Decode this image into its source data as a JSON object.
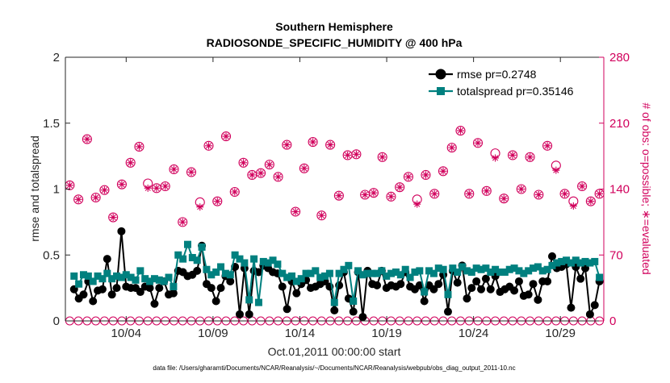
{
  "chart_data": {
    "type": "line",
    "title": "Southern Hemisphere",
    "subtitle": "RADIOSONDE_SPECIFIC_HUMIDITY @ 400 hPa",
    "xlabel": "Oct.01,2011 00:00:00 start",
    "ylabel": "rmse and totalspread",
    "ylabel_right": "# of obs: o=possible; ∗=evaluated",
    "footnote": "data file: /Users/gharamti/Documents/NCAR/Reanalysis/~/Documents/NCAR/Reanalysis/webpub/obs_diag_output_2011-10.nc",
    "xlim": [
      0.5,
      62.5
    ],
    "ylim": [
      0,
      2
    ],
    "ylim_right": [
      0,
      280
    ],
    "x_ticks": [
      7.5,
      17.5,
      27.5,
      37.5,
      47.5,
      57.5
    ],
    "x_tick_labels": [
      "10/04",
      "10/09",
      "10/14",
      "10/19",
      "10/24",
      "10/29"
    ],
    "y_ticks": [
      0,
      0.5,
      1,
      1.5,
      2
    ],
    "y_tick_labels": [
      "0",
      "0.5",
      "1",
      "1.5",
      "2"
    ],
    "y_ticks_right": [
      0,
      70,
      140,
      210,
      280
    ],
    "y_tick_labels_right": [
      "0",
      "70",
      "140",
      "210",
      "280"
    ],
    "legend": {
      "location": "top-right",
      "rmse_label": "rmse pr=0.2748",
      "spread_label": "totalspread pr=0.35146"
    },
    "colors": {
      "rmse": "#000000",
      "spread": "#00807f",
      "obs": "#d1005c",
      "axis": "#262626"
    },
    "series": [
      {
        "name": "rmse",
        "values": [
          0.24,
          0.17,
          0.2,
          0.3,
          0.15,
          0.23,
          0.24,
          0.47,
          0.2,
          0.25,
          0.68,
          0.26,
          0.25,
          0.25,
          0.22,
          0.26,
          0.25,
          0.13,
          0.25,
          0.3,
          0.2,
          0.21,
          0.38,
          0.37,
          0.34,
          0.35,
          0.38,
          0.57,
          0.28,
          0.25,
          0.15,
          0.25,
          0.34,
          0.3,
          0.41,
          0.05,
          0.4,
          0.05,
          0.38,
          0.37,
          0.42,
          0.4,
          0.37,
          0.36,
          0.26,
          0.09,
          0.3,
          0.21,
          0.28,
          0.31,
          0.25,
          0.26,
          0.28,
          0.3,
          0.26,
          0.08,
          0.27,
          0.37,
          0.17,
          0.07,
          0.37,
          0.03,
          0.38,
          0.28,
          0.27,
          0.38,
          0.25,
          0.27,
          0.26,
          0.28,
          0.37,
          0.26,
          0.24,
          0.27,
          0.15,
          0.27,
          0.24,
          0.28,
          0.35,
          0.07,
          0.38,
          0.29,
          0.42,
          0.17,
          0.25,
          0.3,
          0.24,
          0.32,
          0.24,
          0.34,
          0.22,
          0.24,
          0.26,
          0.23,
          0.3,
          0.19,
          0.2,
          0.28,
          0.16,
          0.3,
          0.3,
          0.49,
          0.4,
          0.41,
          0.43,
          0.1,
          0.41,
          0.32,
          0.4,
          0.05,
          0.12,
          0.3
        ]
      },
      {
        "name": "totalspread",
        "values": [
          0.34,
          0.28,
          0.35,
          0.34,
          0.3,
          0.34,
          0.32,
          0.36,
          0.32,
          0.34,
          0.33,
          0.35,
          0.33,
          0.31,
          0.38,
          0.32,
          0.3,
          0.32,
          0.31,
          0.3,
          0.33,
          0.26,
          0.5,
          0.47,
          0.58,
          0.48,
          0.46,
          0.56,
          0.39,
          0.35,
          0.37,
          0.41,
          0.36,
          0.35,
          0.5,
          0.47,
          0.44,
          0.16,
          0.47,
          0.14,
          0.45,
          0.44,
          0.46,
          0.43,
          0.36,
          0.33,
          0.34,
          0.3,
          0.32,
          0.36,
          0.36,
          0.38,
          0.33,
          0.34,
          0.36,
          0.14,
          0.36,
          0.39,
          0.42,
          0.15,
          0.38,
          0.35,
          0.36,
          0.36,
          0.36,
          0.38,
          0.34,
          0.36,
          0.37,
          0.35,
          0.39,
          0.33,
          0.37,
          0.38,
          0.22,
          0.38,
          0.36,
          0.4,
          0.39,
          0.2,
          0.4,
          0.37,
          0.41,
          0.38,
          0.37,
          0.4,
          0.39,
          0.4,
          0.37,
          0.39,
          0.37,
          0.37,
          0.39,
          0.4,
          0.38,
          0.36,
          0.38,
          0.4,
          0.41,
          0.38,
          0.39,
          0.42,
          0.44,
          0.45,
          0.46,
          0.44,
          0.46,
          0.44,
          0.45,
          0.44,
          0.45,
          0.33
        ]
      },
      {
        "name": "obs_possible",
        "axis": "right",
        "x": [
          1,
          2,
          3,
          4,
          5,
          6,
          7,
          8,
          9,
          10,
          11,
          12,
          13,
          14,
          15,
          16,
          17,
          18,
          19,
          20,
          21,
          22,
          23,
          24,
          25,
          26,
          27,
          28,
          29,
          30,
          31,
          32,
          33,
          34,
          35,
          36,
          37,
          38,
          39,
          40,
          41,
          42,
          43,
          44,
          45,
          46,
          47,
          48,
          49,
          50,
          51,
          52,
          53,
          54,
          55,
          56,
          57,
          58,
          59,
          60,
          61,
          62
        ],
        "values": [
          144,
          129,
          193,
          131,
          139,
          110,
          145,
          168,
          185,
          146,
          141,
          143,
          161,
          105,
          158,
          126,
          186,
          127,
          196,
          137,
          168,
          155,
          157,
          166,
          153,
          187,
          116,
          162,
          190,
          112,
          187,
          133,
          176,
          177,
          134,
          136,
          174,
          132,
          142,
          153,
          129,
          155,
          135,
          159,
          184,
          202,
          135,
          189,
          138,
          178,
          130,
          176,
          140,
          174,
          134,
          186,
          165,
          135,
          127,
          143,
          127,
          135
        ]
      },
      {
        "name": "obs_evaluated",
        "axis": "right",
        "x": [
          1,
          2,
          3,
          4,
          5,
          6,
          7,
          8,
          9,
          10,
          11,
          12,
          13,
          14,
          15,
          16,
          17,
          18,
          19,
          20,
          21,
          22,
          23,
          24,
          25,
          26,
          27,
          28,
          29,
          30,
          31,
          32,
          33,
          34,
          35,
          36,
          37,
          38,
          39,
          40,
          41,
          42,
          43,
          44,
          45,
          46,
          47,
          48,
          49,
          50,
          51,
          52,
          53,
          54,
          55,
          56,
          57,
          58,
          59,
          60,
          61,
          62
        ],
        "values": [
          144,
          129,
          193,
          131,
          139,
          110,
          145,
          168,
          185,
          141,
          141,
          143,
          161,
          105,
          158,
          121,
          186,
          127,
          196,
          137,
          168,
          155,
          157,
          166,
          153,
          187,
          116,
          162,
          190,
          112,
          187,
          133,
          176,
          177,
          134,
          136,
          174,
          132,
          142,
          153,
          124,
          155,
          135,
          159,
          184,
          202,
          135,
          189,
          138,
          173,
          130,
          176,
          140,
          174,
          134,
          186,
          160,
          135,
          122,
          143,
          127,
          135
        ]
      },
      {
        "name": "obs_zero_possible",
        "axis": "right",
        "values": [
          0,
          0,
          0,
          0,
          0,
          0,
          0,
          0,
          0,
          0,
          0,
          0,
          0,
          0,
          0,
          0,
          0,
          0,
          0,
          0,
          0,
          0,
          0,
          0,
          0,
          0,
          0,
          0,
          0,
          0,
          0,
          0,
          0,
          0,
          0,
          0,
          0,
          0,
          0,
          0,
          0,
          0,
          0,
          0,
          0,
          0,
          0,
          0,
          0,
          0,
          0,
          0,
          0,
          0,
          0,
          0,
          0,
          0,
          0,
          0,
          0,
          0
        ]
      }
    ]
  }
}
